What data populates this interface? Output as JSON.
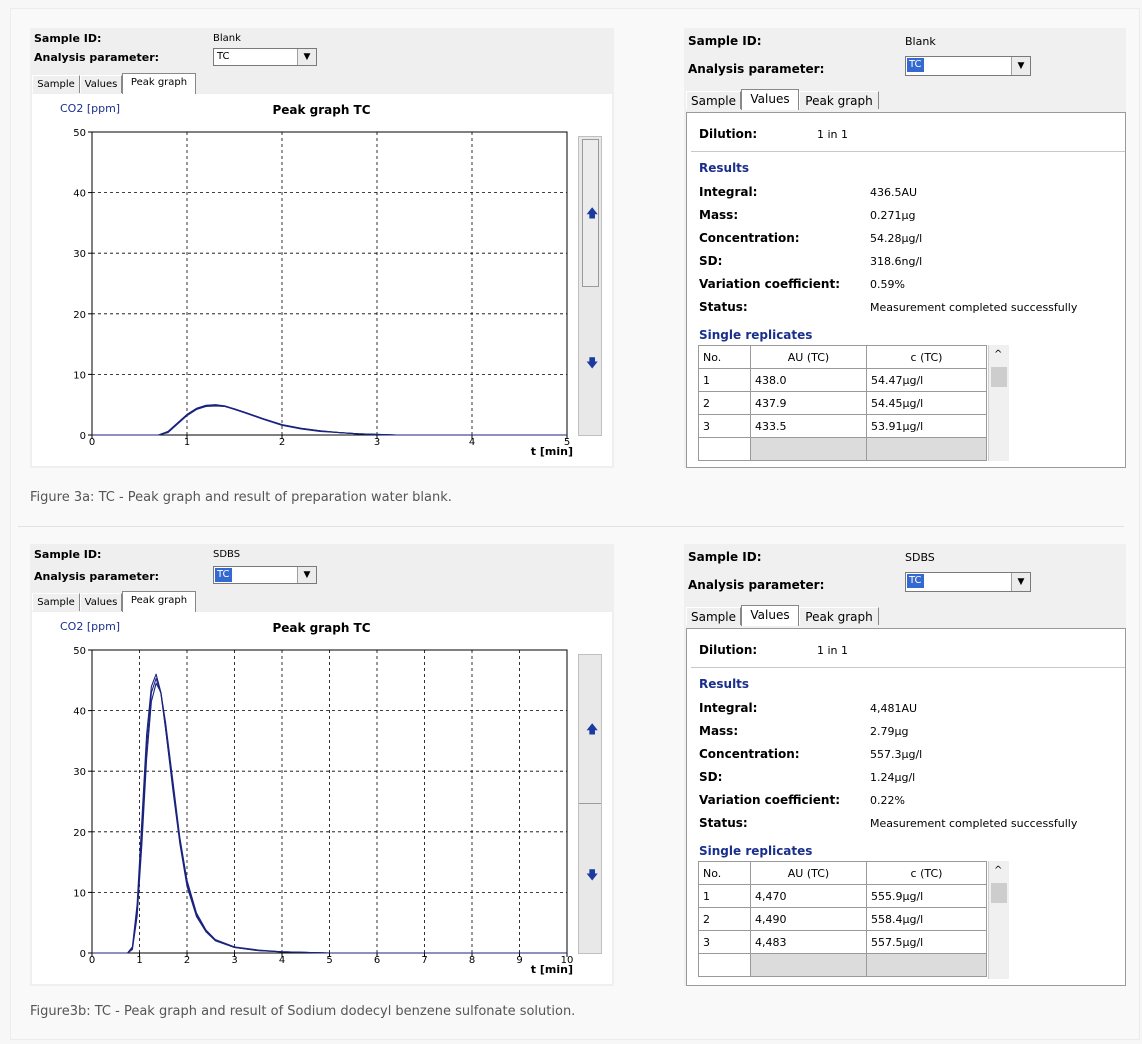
{
  "figures": [
    {
      "graph_panel": {
        "sample_id_label": "Sample ID:",
        "sample_id_value": "Blank",
        "analysis_label": "Analysis parameter:",
        "analysis_value": "TC",
        "tabs": [
          "Sample",
          "Values",
          "Peak graph"
        ],
        "active_tab": "Peak graph"
      },
      "values_panel": {
        "sample_id_label": "Sample ID:",
        "sample_id_value": "Blank",
        "analysis_label": "Analysis parameter:",
        "analysis_value": "TC",
        "tabs": [
          "Sample",
          "Values",
          "Peak graph"
        ],
        "active_tab": "Values",
        "dilution_label": "Dilution:",
        "dilution_value": "1 in 1",
        "results_title": "Results",
        "results": [
          {
            "label": "Integral:",
            "value": "436.5AU"
          },
          {
            "label": "Mass:",
            "value": "0.271µg"
          },
          {
            "label": "Concentration:",
            "value": "54.28µg/l"
          },
          {
            "label": "SD:",
            "value": "318.6ng/l"
          },
          {
            "label": "Variation coefficient:",
            "value": "0.59%"
          },
          {
            "label": "Status:",
            "value": "Measurement completed successfully"
          }
        ],
        "replicates_title": "Single replicates",
        "replicate_headers": [
          "No.",
          "AU (TC)",
          "c (TC)"
        ],
        "replicates": [
          [
            "1",
            "438.0",
            "54.47µg/l"
          ],
          [
            "2",
            "437.9",
            "54.45µg/l"
          ],
          [
            "3",
            "433.5",
            "53.91µg/l"
          ]
        ]
      },
      "caption": "Figure 3a: TC - Peak graph and result of preparation water blank."
    },
    {
      "graph_panel": {
        "sample_id_label": "Sample ID:",
        "sample_id_value": "SDBS",
        "analysis_label": "Analysis parameter:",
        "analysis_value": "TC",
        "tabs": [
          "Sample",
          "Values",
          "Peak graph"
        ],
        "active_tab": "Peak graph"
      },
      "values_panel": {
        "sample_id_label": "Sample ID:",
        "sample_id_value": "SDBS",
        "analysis_label": "Analysis parameter:",
        "analysis_value": "TC",
        "tabs": [
          "Sample",
          "Values",
          "Peak graph"
        ],
        "active_tab": "Values",
        "dilution_label": "Dilution:",
        "dilution_value": "1 in 1",
        "results_title": "Results",
        "results": [
          {
            "label": "Integral:",
            "value": "4,481AU"
          },
          {
            "label": "Mass:",
            "value": "2.79µg"
          },
          {
            "label": "Concentration:",
            "value": "557.3µg/l"
          },
          {
            "label": "SD:",
            "value": "1.24µg/l"
          },
          {
            "label": "Variation coefficient:",
            "value": "0.22%"
          },
          {
            "label": "Status:",
            "value": "Measurement completed successfully"
          }
        ],
        "replicates_title": "Single replicates",
        "replicate_headers": [
          "No.",
          "AU (TC)",
          "c (TC)"
        ],
        "replicates": [
          [
            "1",
            "4,470",
            "555.9µg/l"
          ],
          [
            "2",
            "4,490",
            "558.4µg/l"
          ],
          [
            "3",
            "4,483",
            "557.5µg/l"
          ]
        ]
      },
      "caption": "Figure3b: TC - Peak graph and result of Sodium dodecyl benzene sulfonate solution."
    }
  ],
  "icons": {
    "dropdown": "chevron-down-icon",
    "scroll_up": "arrow-up-icon",
    "scroll_down": "arrow-down-icon"
  },
  "colors": {
    "trace": "#1a237e",
    "section_title": "#1a2f8c",
    "selection": "#3369d1"
  },
  "chart_data": [
    {
      "type": "line",
      "title": "Peak graph TC",
      "ylabel": "CO2 [ppm]",
      "xlabel": "t [min]",
      "xlim": [
        0,
        5
      ],
      "ylim": [
        0,
        50
      ],
      "xticks": [
        0,
        1,
        2,
        3,
        4,
        5
      ],
      "yticks": [
        0,
        10,
        20,
        30,
        40,
        50
      ],
      "grid": true,
      "series": [
        {
          "x": [
            0,
            0.7,
            0.8,
            0.9,
            1.0,
            1.1,
            1.2,
            1.3,
            1.4,
            1.5,
            1.6,
            1.8,
            2.0,
            2.2,
            2.4,
            2.6,
            2.8,
            3.0,
            3.2
          ],
          "values": [
            0,
            0,
            0.6,
            2.0,
            3.4,
            4.4,
            4.9,
            5.0,
            4.8,
            4.3,
            3.8,
            2.7,
            1.7,
            1.1,
            0.7,
            0.4,
            0.2,
            0.1,
            0
          ]
        },
        {
          "x": [
            0,
            0.7,
            0.8,
            0.9,
            1.0,
            1.1,
            1.2,
            1.3,
            1.4,
            1.5,
            1.6,
            1.8,
            2.0,
            2.2,
            2.4,
            2.6,
            2.8,
            3.0,
            3.2
          ],
          "values": [
            0,
            0,
            0.5,
            1.9,
            3.3,
            4.3,
            4.8,
            4.9,
            4.7,
            4.3,
            3.8,
            2.7,
            1.7,
            1.1,
            0.7,
            0.4,
            0.2,
            0.1,
            0
          ]
        },
        {
          "x": [
            0,
            0.7,
            0.8,
            0.9,
            1.0,
            1.1,
            1.2,
            1.3,
            1.4,
            1.5,
            1.6,
            1.8,
            2.0,
            2.2,
            2.4,
            2.6,
            2.8,
            3.0,
            3.2
          ],
          "values": [
            0,
            0,
            0.4,
            1.8,
            3.2,
            4.2,
            4.7,
            4.8,
            4.7,
            4.2,
            3.7,
            2.6,
            1.6,
            1.0,
            0.6,
            0.4,
            0.2,
            0.1,
            0
          ]
        }
      ]
    },
    {
      "type": "line",
      "title": "Peak graph TC",
      "ylabel": "CO2 [ppm]",
      "xlabel": "t [min]",
      "xlim": [
        0,
        10
      ],
      "ylim": [
        0,
        50
      ],
      "xticks": [
        0,
        1,
        2,
        3,
        4,
        5,
        6,
        7,
        8,
        9,
        10
      ],
      "yticks": [
        0,
        10,
        20,
        30,
        40,
        50
      ],
      "grid": true,
      "series": [
        {
          "x": [
            0,
            0.75,
            0.85,
            0.95,
            1.05,
            1.15,
            1.25,
            1.35,
            1.45,
            1.55,
            1.7,
            1.85,
            2.0,
            2.2,
            2.4,
            2.6,
            3.0,
            3.5,
            4.0,
            5.0
          ],
          "values": [
            0,
            0,
            1.0,
            8.0,
            22.0,
            36.0,
            44.0,
            46.0,
            43.0,
            37.0,
            27.0,
            18.0,
            11.0,
            6.0,
            3.5,
            2.0,
            0.9,
            0.4,
            0.2,
            0
          ]
        },
        {
          "x": [
            0,
            0.75,
            0.85,
            0.95,
            1.05,
            1.15,
            1.25,
            1.35,
            1.45,
            1.55,
            1.7,
            1.85,
            2.0,
            2.2,
            2.4,
            2.6,
            3.0,
            3.5,
            4.0,
            5.0
          ],
          "values": [
            0,
            0,
            0.8,
            7.0,
            20.0,
            34.0,
            43.0,
            45.3,
            42.8,
            37.0,
            27.5,
            18.5,
            11.5,
            6.3,
            3.6,
            2.1,
            0.9,
            0.4,
            0.2,
            0
          ]
        },
        {
          "x": [
            0,
            0.75,
            0.85,
            0.95,
            1.05,
            1.15,
            1.25,
            1.35,
            1.45,
            1.55,
            1.7,
            1.85,
            2.0,
            2.2,
            2.4,
            2.6,
            3.0,
            3.5,
            4.0,
            5.0
          ],
          "values": [
            0,
            0,
            0.6,
            6.0,
            18.0,
            32.0,
            41.5,
            44.5,
            43.0,
            38.0,
            28.5,
            19.0,
            12.0,
            6.6,
            3.8,
            2.2,
            1.0,
            0.5,
            0.2,
            0
          ]
        }
      ]
    }
  ]
}
